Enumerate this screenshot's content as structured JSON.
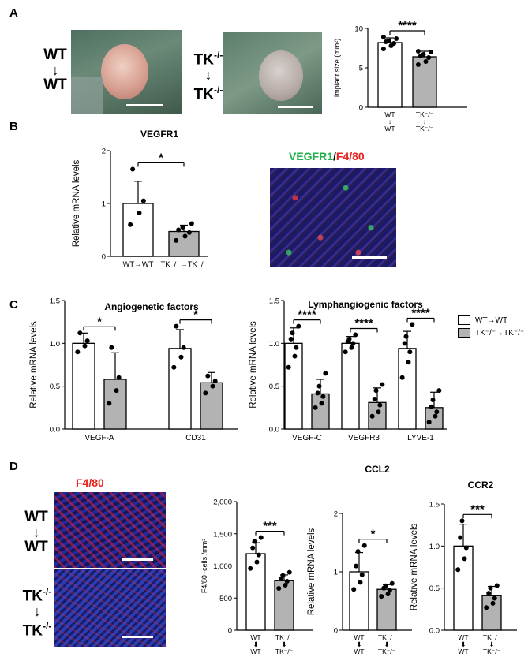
{
  "panels": {
    "A": "A",
    "B": "B",
    "C": "C",
    "D": "D"
  },
  "panelA": {
    "wt_label_top": "WT",
    "wt_arrow": "↓",
    "wt_label_bottom": "WT",
    "tk_label_top": "TK",
    "tk_sup": "-/-",
    "tk_arrow": "↓",
    "tk_label_bottom": "TK",
    "tk_sup_bottom": "-/-"
  },
  "panelB": {
    "stain_green": "VEGFR1",
    "stain_sep": "/",
    "stain_red": "F4/80"
  },
  "panelD": {
    "stain_title": "F4/80",
    "wt_top": "WT",
    "wt_arrow": "↓",
    "wt_bottom": "WT",
    "tk_top": "TK",
    "tk_sup": "-/-",
    "tk_arrow": "↓",
    "tk_bottom": "TK",
    "tk_sup_bottom": "-/-"
  },
  "legend": {
    "wt": "WT→WT",
    "tk": "TK⁻/⁻→TK⁻/⁻",
    "wt_color": "#ffffff",
    "tk_color": "#b3b3b3"
  },
  "chart_data": [
    {
      "id": "implant",
      "type": "bar",
      "ylabel": "Implant size (mm²)",
      "ylim": [
        0,
        10
      ],
      "yticks": [
        "0",
        "5",
        "10"
      ],
      "categories": [
        "WT ↓ WT",
        "TK⁻/⁻ ↓ TK⁻/⁻"
      ],
      "values": [
        8.2,
        6.4
      ],
      "errors": [
        0.6,
        0.7
      ],
      "points": [
        [
          7.4,
          7.8,
          8.1,
          8.3,
          8.4,
          8.7,
          8.9
        ],
        [
          5.4,
          5.8,
          6.3,
          6.5,
          6.7,
          7.0,
          7.1
        ]
      ],
      "significance": "****"
    },
    {
      "id": "vegfr1",
      "type": "bar",
      "title": "VEGFR1",
      "ylabel": "Relative mRNA levels",
      "ylim": [
        0,
        2
      ],
      "yticks": [
        "0",
        "1",
        "2"
      ],
      "categories": [
        "WT→WT",
        "TK⁻/⁻→TK⁻/⁻"
      ],
      "values": [
        1.0,
        0.47
      ],
      "errors": [
        0.42,
        0.12
      ],
      "points": [
        [
          0.6,
          0.82,
          1.05,
          1.65
        ],
        [
          0.3,
          0.38,
          0.45,
          0.5,
          0.55,
          0.62
        ]
      ],
      "significance": "*"
    },
    {
      "id": "angio",
      "type": "bar",
      "title": "Angiogenetic factors",
      "ylabel": "Relative mRNA levels",
      "ylim": [
        0,
        1.5
      ],
      "yticks": [
        "0.0",
        "0.5",
        "1.0",
        "1.5"
      ],
      "categories": [
        "VEGF-A",
        "CD31"
      ],
      "series": [
        {
          "values": [
            1.0,
            0.94
          ],
          "errors": [
            0.12,
            0.22
          ],
          "points": [
            [
              0.9,
              0.97,
              1.03,
              1.12
            ],
            [
              0.72,
              0.84,
              0.95,
              1.2
            ]
          ]
        },
        {
          "values": [
            0.58,
            0.54
          ],
          "errors": [
            0.31,
            0.12
          ],
          "points": [
            [
              0.3,
              0.45,
              0.6,
              0.95
            ],
            [
              0.42,
              0.5,
              0.56,
              0.62
            ]
          ]
        }
      ],
      "significance": [
        "*",
        "*"
      ]
    },
    {
      "id": "lymph",
      "type": "bar",
      "title": "Lymphangiogenic factors",
      "ylabel": "Relative mRNA levels",
      "ylim": [
        0,
        1.5
      ],
      "yticks": [
        "0.0",
        "0.5",
        "1.0",
        "1.5"
      ],
      "categories": [
        "VEGF-C",
        "VEGFR3",
        "LYVE-1"
      ],
      "series": [
        {
          "values": [
            1.0,
            1.0,
            0.94
          ],
          "errors": [
            0.18,
            0.08,
            0.2
          ],
          "points": [
            [
              0.72,
              0.85,
              0.95,
              1.05,
              1.12,
              1.2
            ],
            [
              0.9,
              0.95,
              1.0,
              1.02,
              1.05,
              1.1
            ],
            [
              0.6,
              0.78,
              0.9,
              1.0,
              1.08,
              1.22
            ]
          ]
        },
        {
          "values": [
            0.41,
            0.31,
            0.25
          ],
          "errors": [
            0.17,
            0.17,
            0.18
          ],
          "points": [
            [
              0.25,
              0.3,
              0.38,
              0.42,
              0.5,
              0.65
            ],
            [
              0.15,
              0.2,
              0.28,
              0.35,
              0.45,
              0.52
            ],
            [
              0.08,
              0.15,
              0.2,
              0.26,
              0.34,
              0.45
            ]
          ]
        }
      ],
      "significance": [
        "****",
        "****",
        "****"
      ]
    },
    {
      "id": "f480",
      "type": "bar",
      "ylabel": "F4/80+cells /mm²",
      "ylim": [
        0,
        2000
      ],
      "yticks": [
        "0",
        "500",
        "1,000",
        "1,500",
        "2,000"
      ],
      "categories": [
        "WT ⬇ WT",
        "TK⁻/⁻ ⬇ TK⁻/⁻"
      ],
      "values": [
        1190,
        770
      ],
      "errors": [
        170,
        90
      ],
      "points": [
        [
          960,
          1060,
          1170,
          1280,
          1380,
          1440
        ],
        [
          650,
          700,
          760,
          800,
          850,
          900
        ]
      ],
      "significance": "***"
    },
    {
      "id": "ccl2",
      "type": "bar",
      "title": "CCL2",
      "ylabel": "Relative mRNA levels",
      "ylim": [
        0,
        2
      ],
      "yticks": [
        "0",
        "1",
        "2"
      ],
      "categories": [
        "WT ⬇ WT",
        "TK⁻/⁻ ⬇ TK⁻/⁻"
      ],
      "values": [
        1.0,
        0.7
      ],
      "errors": [
        0.33,
        0.08
      ],
      "points": [
        [
          0.7,
          0.82,
          0.95,
          1.1,
          1.35,
          1.45
        ],
        [
          0.58,
          0.62,
          0.68,
          0.72,
          0.76,
          0.8
        ]
      ],
      "significance": "*"
    },
    {
      "id": "ccr2",
      "type": "bar",
      "title": "CCR2",
      "ylabel": "Relative mRNA levels",
      "ylim": [
        0,
        1.5
      ],
      "yticks": [
        "0.0",
        "0.5",
        "1.0",
        "1.5"
      ],
      "categories": [
        "WT ⬇ WT",
        "TK⁻/⁻ ⬇ TK⁻/⁻"
      ],
      "values": [
        1.0,
        0.41
      ],
      "errors": [
        0.26,
        0.11
      ],
      "points": [
        [
          0.72,
          0.85,
          0.98,
          1.1,
          1.3
        ],
        [
          0.27,
          0.32,
          0.38,
          0.44,
          0.5,
          0.53
        ]
      ],
      "significance": "***"
    }
  ]
}
